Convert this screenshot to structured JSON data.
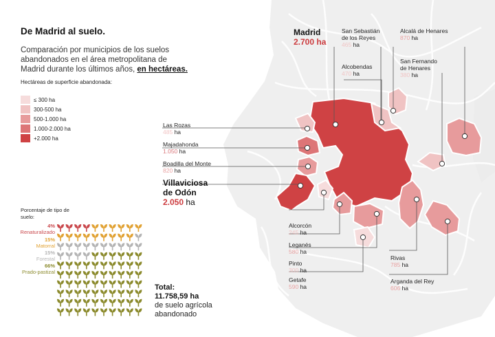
{
  "header": {
    "title": "De Madrid al suelo.",
    "subtitle_pre": "Comparación por municipios de los suelos abandonados en el área metropolitana de Madrid durante los últimos años, ",
    "subtitle_emph": "en hectáreas."
  },
  "legend": {
    "title": "Hectáreas de superficie abandonada:",
    "items": [
      {
        "label": "≤ 300 ha",
        "color": "#f6dcdc"
      },
      {
        "label": "300-500 ha",
        "color": "#f0c3c3"
      },
      {
        "label": "500-1.000 ha",
        "color": "#e79b9c"
      },
      {
        "label": "1.000-2.000 ha",
        "color": "#dd7577"
      },
      {
        "label": "+2.000 ha",
        "color": "#cf4244"
      }
    ]
  },
  "soil": {
    "title": "Porcentaje de tipo de suelo:",
    "types": [
      {
        "pct": "4%",
        "name": "Renaturalizado",
        "color": "#c9474b",
        "count": 4
      },
      {
        "pct": "15%",
        "name": "Matorral",
        "color": "#e1a234",
        "count": 15
      },
      {
        "pct": "15%",
        "name": "Forestal",
        "color": "#b4b4b4",
        "count": 15
      },
      {
        "pct": "66%",
        "name": "Prado-pastizal",
        "color": "#8b8a2c",
        "count": 66
      }
    ]
  },
  "total": {
    "label": "Total:",
    "value": "11.758,59 ha",
    "line1": "de suelo agrícola",
    "line2": "abandonado"
  },
  "unit": "ha",
  "municipalities": [
    {
      "id": "madrid",
      "name": "Madrid",
      "value": "2.700",
      "color": "#cf4244"
    },
    {
      "id": "sansebastian",
      "name": "San Sebastián de los Reyes",
      "name_l1": "San Sebastián",
      "name_l2": "de los Reyes",
      "value": "465",
      "color": "#f0c3c3"
    },
    {
      "id": "alcala",
      "name": "Alcalá de Henares",
      "value": "870",
      "color": "#e79b9c"
    },
    {
      "id": "alcobendas",
      "name": "Alcobendas",
      "value": "470",
      "color": "#f0c3c3"
    },
    {
      "id": "sanfernando",
      "name": "San Fernando de Henares",
      "name_l1": "San Fernando",
      "name_l2": "de Henares",
      "value": "380",
      "color": "#f0c3c3"
    },
    {
      "id": "lasrozas",
      "name": "Las Rozas",
      "value": "485",
      "color": "#f0c3c3"
    },
    {
      "id": "majadahonda",
      "name": "Majadahonda",
      "value": "1.050",
      "color": "#dd7577"
    },
    {
      "id": "boadilla",
      "name": "Boadilla del Monte",
      "value": "820",
      "color": "#e79b9c"
    },
    {
      "id": "villaviciosa",
      "name": "Villaviciosa de Odón",
      "name_l1": "Villaviciosa",
      "name_l2": "de Odón",
      "value": "2.050",
      "color": "#cf4244"
    },
    {
      "id": "alcorcon",
      "name": "Alcorcón",
      "value": "245",
      "color": "#f6dcdc"
    },
    {
      "id": "leganes",
      "name": "Leganés",
      "value": "580",
      "color": "#e79b9c"
    },
    {
      "id": "pinto",
      "name": "Pinto",
      "value": "300",
      "color": "#f6dcdc"
    },
    {
      "id": "getafe",
      "name": "Getafe",
      "value": "590",
      "color": "#e79b9c"
    },
    {
      "id": "rivas",
      "name": "Rivas",
      "value": "785",
      "color": "#e79b9c"
    },
    {
      "id": "arganda",
      "name": "Arganda del Rey",
      "value": "606",
      "color": "#e79b9c"
    }
  ]
}
